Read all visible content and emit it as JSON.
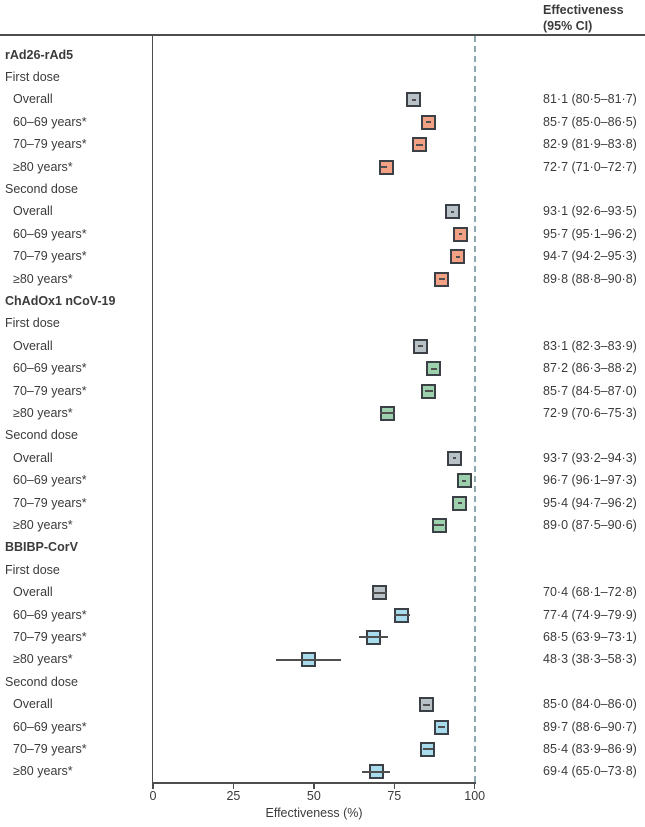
{
  "figure": {
    "header": {
      "line1": "Effectiveness",
      "line2": "(95% CI)"
    }
  },
  "chart_data": {
    "type": "forest",
    "title": "",
    "xlabel": "Effectiveness (%)",
    "x_ticks": [
      "0",
      "25",
      "50",
      "75",
      "100"
    ],
    "x_tick_values": [
      0,
      25,
      50,
      75,
      100
    ],
    "xlim": [
      0,
      100
    ],
    "reference_line_x": 100,
    "grid": false,
    "legend_position": "none",
    "colors": {
      "overall_fill": "#b8c1c6",
      "box_border": "#3a4046",
      "whisker": "#4f4f4f",
      "reference_line": "#8ea8b0",
      "axis": "#4d4d4d"
    },
    "groups": [
      {
        "vaccine": "rAd26-rAd5",
        "fill": "#f3a185",
        "doses": [
          {
            "label": "First dose",
            "rows": [
              {
                "label": "Overall",
                "overall": true,
                "est": 81.1,
                "lo": 80.5,
                "hi": 81.7,
                "text": "81·1 (80·5–81·7)"
              },
              {
                "label": "60–69 years*",
                "overall": false,
                "est": 85.7,
                "lo": 85.0,
                "hi": 86.5,
                "text": "85·7 (85·0–86·5)"
              },
              {
                "label": "70–79 years*",
                "overall": false,
                "est": 82.9,
                "lo": 81.9,
                "hi": 83.8,
                "text": "82·9 (81·9–83·8)"
              },
              {
                "label": "≥80 years*",
                "overall": false,
                "est": 72.7,
                "lo": 71.0,
                "hi": 72.7,
                "text": "72·7 (71·0–72·7)"
              }
            ]
          },
          {
            "label": "Second dose",
            "rows": [
              {
                "label": "Overall",
                "overall": true,
                "est": 93.1,
                "lo": 92.6,
                "hi": 93.5,
                "text": "93·1 (92·6–93·5)"
              },
              {
                "label": "60–69 years*",
                "overall": false,
                "est": 95.7,
                "lo": 95.1,
                "hi": 96.2,
                "text": "95·7 (95·1–96·2)"
              },
              {
                "label": "70–79 years*",
                "overall": false,
                "est": 94.7,
                "lo": 94.2,
                "hi": 95.3,
                "text": "94·7 (94·2–95·3)"
              },
              {
                "label": "≥80 years*",
                "overall": false,
                "est": 89.8,
                "lo": 88.8,
                "hi": 90.8,
                "text": "89·8 (88·8–90·8)"
              }
            ]
          }
        ]
      },
      {
        "vaccine": "ChAdOx1 nCoV-19",
        "fill": "#9dd0ad",
        "doses": [
          {
            "label": "First dose",
            "rows": [
              {
                "label": "Overall",
                "overall": true,
                "est": 83.1,
                "lo": 82.3,
                "hi": 83.9,
                "text": "83·1 (82·3–83·9)"
              },
              {
                "label": "60–69 years*",
                "overall": false,
                "est": 87.2,
                "lo": 86.3,
                "hi": 88.2,
                "text": "87·2 (86·3–88·2)"
              },
              {
                "label": "70–79 years*",
                "overall": false,
                "est": 85.7,
                "lo": 84.5,
                "hi": 87.0,
                "text": "85·7 (84·5–87·0)"
              },
              {
                "label": "≥80 years*",
                "overall": false,
                "est": 72.9,
                "lo": 70.6,
                "hi": 75.3,
                "text": "72·9 (70·6–75·3)"
              }
            ]
          },
          {
            "label": "Second dose",
            "rows": [
              {
                "label": "Overall",
                "overall": true,
                "est": 93.7,
                "lo": 93.2,
                "hi": 94.3,
                "text": "93·7 (93·2–94·3)"
              },
              {
                "label": "60–69 years*",
                "overall": false,
                "est": 96.7,
                "lo": 96.1,
                "hi": 97.3,
                "text": "96·7 (96·1–97·3)"
              },
              {
                "label": "70–79 years*",
                "overall": false,
                "est": 95.4,
                "lo": 94.7,
                "hi": 96.2,
                "text": "95·4 (94·7–96·2)"
              },
              {
                "label": "≥80 years*",
                "overall": false,
                "est": 89.0,
                "lo": 87.5,
                "hi": 90.6,
                "text": "89·0 (87·5–90·6)"
              }
            ]
          }
        ]
      },
      {
        "vaccine": "BBIBP-CorV",
        "fill": "#a8dcec",
        "doses": [
          {
            "label": "First dose",
            "rows": [
              {
                "label": "Overall",
                "overall": true,
                "est": 70.4,
                "lo": 68.1,
                "hi": 72.8,
                "text": "70·4 (68·1–72·8)"
              },
              {
                "label": "60–69 years*",
                "overall": false,
                "est": 77.4,
                "lo": 74.9,
                "hi": 79.9,
                "text": "77·4 (74·9–79·9)"
              },
              {
                "label": "70–79 years*",
                "overall": false,
                "est": 68.5,
                "lo": 63.9,
                "hi": 73.1,
                "text": "68·5 (63·9–73·1)"
              },
              {
                "label": "≥80 years*",
                "overall": false,
                "est": 48.3,
                "lo": 38.3,
                "hi": 58.3,
                "text": "48·3 (38·3–58·3)"
              }
            ]
          },
          {
            "label": "Second dose",
            "rows": [
              {
                "label": "Overall",
                "overall": true,
                "est": 85.0,
                "lo": 84.0,
                "hi": 86.0,
                "text": "85·0 (84·0–86·0)"
              },
              {
                "label": "60–69 years*",
                "overall": false,
                "est": 89.7,
                "lo": 88.6,
                "hi": 90.7,
                "text": "89·7 (88·6–90·7)"
              },
              {
                "label": "70–79 years*",
                "overall": false,
                "est": 85.4,
                "lo": 83.9,
                "hi": 86.9,
                "text": "85·4 (83·9–86·9)"
              },
              {
                "label": "≥80 years*",
                "overall": false,
                "est": 69.4,
                "lo": 65.0,
                "hi": 73.8,
                "text": "69·4 (65·0–73·8)"
              }
            ]
          }
        ]
      }
    ]
  }
}
